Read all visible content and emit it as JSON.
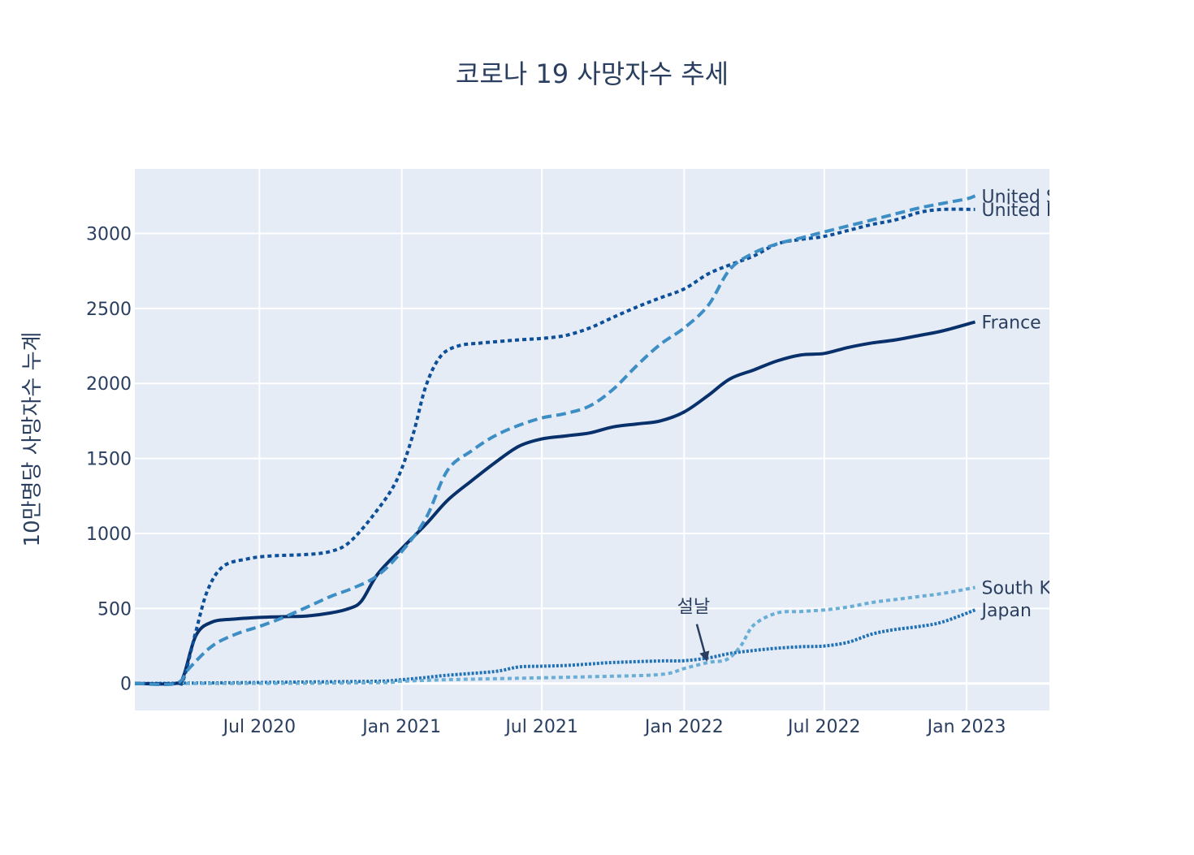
{
  "chart_data": {
    "type": "line",
    "title": "코로나 19 사망자수 추세",
    "xlabel": "",
    "ylabel": "10만명당 사망자수 누계",
    "x_start": "2020-01-22",
    "xlim": [
      "2020-01-22",
      "2023-04-18"
    ],
    "ylim": [
      -180,
      3430
    ],
    "x_ticks": [
      {
        "date": "2020-07-01",
        "label": "Jul 2020"
      },
      {
        "date": "2021-01-01",
        "label": "Jan 2021"
      },
      {
        "date": "2021-07-01",
        "label": "Jul 2021"
      },
      {
        "date": "2022-01-01",
        "label": "Jan 2022"
      },
      {
        "date": "2022-07-01",
        "label": "Jul 2022"
      },
      {
        "date": "2023-01-01",
        "label": "Jan 2023"
      }
    ],
    "y_ticks": [
      {
        "value": 0,
        "label": "0"
      },
      {
        "value": 500,
        "label": "500"
      },
      {
        "value": 1000,
        "label": "1000"
      },
      {
        "value": 1500,
        "label": "1500"
      },
      {
        "value": 2000,
        "label": "2000"
      },
      {
        "value": 2500,
        "label": "2500"
      },
      {
        "value": 3000,
        "label": "3000"
      }
    ],
    "grid": true,
    "legend": "none (labels at line ends)",
    "series": [
      {
        "name": "United States",
        "label": "United Stat",
        "color": "#3d8ec5",
        "dash": "12,6",
        "width": 4,
        "points": [
          [
            "2020-01-22",
            0
          ],
          [
            "2020-03-15",
            0
          ],
          [
            "2020-04-01",
            100
          ],
          [
            "2020-05-01",
            250
          ],
          [
            "2020-06-01",
            330
          ],
          [
            "2020-07-01",
            380
          ],
          [
            "2020-08-01",
            440
          ],
          [
            "2020-09-01",
            510
          ],
          [
            "2020-10-01",
            580
          ],
          [
            "2020-11-01",
            640
          ],
          [
            "2020-12-01",
            720
          ],
          [
            "2021-01-01",
            880
          ],
          [
            "2021-02-01",
            1100
          ],
          [
            "2021-03-01",
            1420
          ],
          [
            "2021-04-01",
            1550
          ],
          [
            "2021-05-01",
            1650
          ],
          [
            "2021-06-01",
            1720
          ],
          [
            "2021-07-01",
            1770
          ],
          [
            "2021-08-01",
            1800
          ],
          [
            "2021-09-01",
            1850
          ],
          [
            "2021-10-01",
            1960
          ],
          [
            "2021-11-01",
            2120
          ],
          [
            "2021-12-01",
            2260
          ],
          [
            "2022-01-01",
            2370
          ],
          [
            "2022-02-01",
            2520
          ],
          [
            "2022-03-01",
            2760
          ],
          [
            "2022-04-01",
            2870
          ],
          [
            "2022-05-01",
            2930
          ],
          [
            "2022-06-01",
            2970
          ],
          [
            "2022-07-01",
            3010
          ],
          [
            "2022-08-01",
            3050
          ],
          [
            "2022-09-01",
            3090
          ],
          [
            "2022-10-01",
            3130
          ],
          [
            "2022-11-01",
            3170
          ],
          [
            "2022-12-01",
            3200
          ],
          [
            "2023-01-01",
            3230
          ],
          [
            "2023-01-12",
            3250
          ]
        ]
      },
      {
        "name": "United Kingdom",
        "label": "United King",
        "color": "#0d4f99",
        "dash": "5,4",
        "width": 4,
        "points": [
          [
            "2020-01-22",
            0
          ],
          [
            "2020-03-15",
            0
          ],
          [
            "2020-03-25",
            30
          ],
          [
            "2020-04-10",
            350
          ],
          [
            "2020-04-25",
            620
          ],
          [
            "2020-05-15",
            780
          ],
          [
            "2020-06-15",
            830
          ],
          [
            "2020-07-15",
            850
          ],
          [
            "2020-09-01",
            860
          ],
          [
            "2020-10-01",
            880
          ],
          [
            "2020-10-25",
            940
          ],
          [
            "2020-11-25",
            1120
          ],
          [
            "2020-12-25",
            1350
          ],
          [
            "2021-01-15",
            1650
          ],
          [
            "2021-02-01",
            1980
          ],
          [
            "2021-02-20",
            2180
          ],
          [
            "2021-03-15",
            2250
          ],
          [
            "2021-04-15",
            2270
          ],
          [
            "2021-06-01",
            2290
          ],
          [
            "2021-07-01",
            2300
          ],
          [
            "2021-08-01",
            2320
          ],
          [
            "2021-09-01",
            2370
          ],
          [
            "2021-10-01",
            2440
          ],
          [
            "2021-11-01",
            2510
          ],
          [
            "2021-12-01",
            2570
          ],
          [
            "2022-01-01",
            2630
          ],
          [
            "2022-02-01",
            2730
          ],
          [
            "2022-03-01",
            2790
          ],
          [
            "2022-04-01",
            2850
          ],
          [
            "2022-05-01",
            2930
          ],
          [
            "2022-06-01",
            2960
          ],
          [
            "2022-07-01",
            2980
          ],
          [
            "2022-08-01",
            3020
          ],
          [
            "2022-09-01",
            3060
          ],
          [
            "2022-10-01",
            3090
          ],
          [
            "2022-11-01",
            3140
          ],
          [
            "2022-12-01",
            3160
          ],
          [
            "2023-01-12",
            3160
          ]
        ]
      },
      {
        "name": "France",
        "label": "France",
        "color": "#08306b",
        "dash": "",
        "width": 4,
        "points": [
          [
            "2020-01-22",
            0
          ],
          [
            "2020-03-15",
            0
          ],
          [
            "2020-03-25",
            50
          ],
          [
            "2020-04-10",
            320
          ],
          [
            "2020-05-01",
            410
          ],
          [
            "2020-06-01",
            430
          ],
          [
            "2020-07-01",
            440
          ],
          [
            "2020-08-01",
            445
          ],
          [
            "2020-09-01",
            450
          ],
          [
            "2020-10-01",
            470
          ],
          [
            "2020-10-25",
            500
          ],
          [
            "2020-11-10",
            550
          ],
          [
            "2020-12-01",
            730
          ],
          [
            "2021-01-01",
            900
          ],
          [
            "2021-02-01",
            1060
          ],
          [
            "2021-03-01",
            1220
          ],
          [
            "2021-04-01",
            1350
          ],
          [
            "2021-05-01",
            1470
          ],
          [
            "2021-06-01",
            1580
          ],
          [
            "2021-07-01",
            1630
          ],
          [
            "2021-08-01",
            1650
          ],
          [
            "2021-09-01",
            1670
          ],
          [
            "2021-10-01",
            1710
          ],
          [
            "2021-11-01",
            1730
          ],
          [
            "2021-12-01",
            1750
          ],
          [
            "2022-01-01",
            1810
          ],
          [
            "2022-02-01",
            1920
          ],
          [
            "2022-03-01",
            2030
          ],
          [
            "2022-04-01",
            2090
          ],
          [
            "2022-05-01",
            2150
          ],
          [
            "2022-06-01",
            2190
          ],
          [
            "2022-07-01",
            2200
          ],
          [
            "2022-08-01",
            2240
          ],
          [
            "2022-09-01",
            2270
          ],
          [
            "2022-10-01",
            2290
          ],
          [
            "2022-11-01",
            2320
          ],
          [
            "2022-12-01",
            2350
          ],
          [
            "2023-01-12",
            2410
          ]
        ]
      },
      {
        "name": "South Korea",
        "label": "South Kore",
        "color": "#6aaed6",
        "dash": "5,4",
        "width": 4,
        "points": [
          [
            "2020-01-22",
            0
          ],
          [
            "2020-06-01",
            0
          ],
          [
            "2020-12-01",
            5
          ],
          [
            "2021-01-01",
            15
          ],
          [
            "2021-03-01",
            25
          ],
          [
            "2021-06-01",
            35
          ],
          [
            "2021-09-01",
            45
          ],
          [
            "2021-12-01",
            60
          ],
          [
            "2022-01-01",
            100
          ],
          [
            "2022-02-01",
            140
          ],
          [
            "2022-02-25",
            160
          ],
          [
            "2022-03-15",
            250
          ],
          [
            "2022-04-01",
            390
          ],
          [
            "2022-05-01",
            470
          ],
          [
            "2022-06-01",
            480
          ],
          [
            "2022-07-01",
            490
          ],
          [
            "2022-08-01",
            510
          ],
          [
            "2022-09-01",
            540
          ],
          [
            "2022-10-01",
            560
          ],
          [
            "2022-11-01",
            580
          ],
          [
            "2022-12-01",
            600
          ],
          [
            "2023-01-12",
            640
          ]
        ]
      },
      {
        "name": "Japan",
        "label": "Japan",
        "color": "#2171b5",
        "dash": "3,2",
        "width": 4,
        "points": [
          [
            "2020-01-22",
            0
          ],
          [
            "2020-06-01",
            5
          ],
          [
            "2020-09-01",
            10
          ],
          [
            "2020-12-01",
            15
          ],
          [
            "2021-01-01",
            25
          ],
          [
            "2021-02-01",
            40
          ],
          [
            "2021-03-01",
            55
          ],
          [
            "2021-05-01",
            80
          ],
          [
            "2021-06-01",
            110
          ],
          [
            "2021-07-01",
            115
          ],
          [
            "2021-08-01",
            120
          ],
          [
            "2021-09-01",
            130
          ],
          [
            "2021-10-01",
            140
          ],
          [
            "2021-12-01",
            150
          ],
          [
            "2022-01-01",
            152
          ],
          [
            "2022-02-01",
            170
          ],
          [
            "2022-03-01",
            200
          ],
          [
            "2022-04-01",
            220
          ],
          [
            "2022-05-01",
            235
          ],
          [
            "2022-06-01",
            245
          ],
          [
            "2022-07-01",
            250
          ],
          [
            "2022-08-01",
            275
          ],
          [
            "2022-09-01",
            330
          ],
          [
            "2022-10-01",
            360
          ],
          [
            "2022-11-01",
            380
          ],
          [
            "2022-12-01",
            410
          ],
          [
            "2023-01-12",
            490
          ]
        ]
      }
    ],
    "annotations": [
      {
        "text": "설날",
        "date": "2022-02-01",
        "value": 125
      }
    ]
  }
}
